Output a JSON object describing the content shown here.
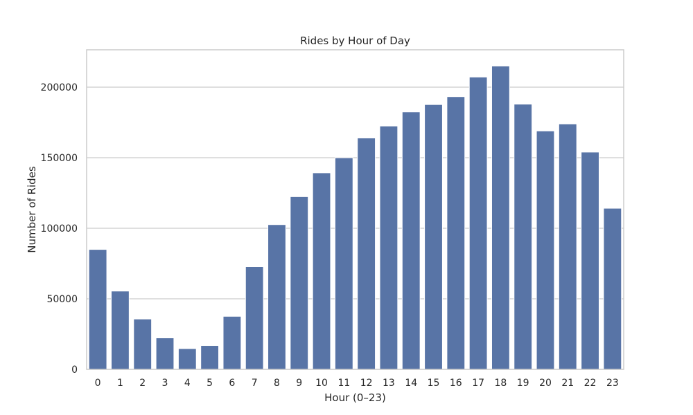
{
  "chart_data": {
    "type": "bar",
    "title": "Rides by Hour of Day",
    "xlabel": "Hour (0–23)",
    "ylabel": "Number of Rides",
    "categories": [
      "0",
      "1",
      "2",
      "3",
      "4",
      "5",
      "6",
      "7",
      "8",
      "9",
      "10",
      "11",
      "12",
      "13",
      "14",
      "15",
      "16",
      "17",
      "18",
      "19",
      "20",
      "21",
      "22",
      "23"
    ],
    "values": [
      85000,
      55500,
      35700,
      22300,
      14700,
      16900,
      37600,
      72800,
      102600,
      122400,
      139300,
      150000,
      164000,
      172500,
      182500,
      187700,
      193300,
      207200,
      215000,
      188000,
      169000,
      174000,
      154000,
      114200
    ],
    "ylim": [
      0,
      226500
    ],
    "yticks": [
      0,
      50000,
      100000,
      150000,
      200000
    ],
    "ytick_labels": [
      "0",
      "50000",
      "100000",
      "150000",
      "200000"
    ],
    "grid": true,
    "colors": {
      "bar": "#5874a6",
      "grid": "#cccccc",
      "text": "#262626"
    }
  }
}
